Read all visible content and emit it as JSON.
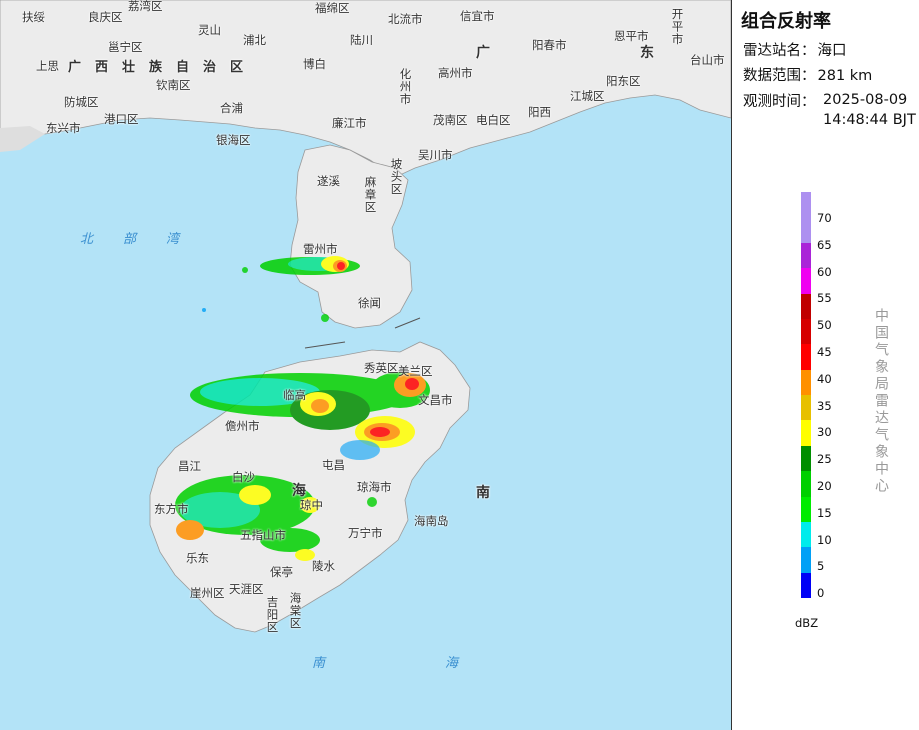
{
  "panel": {
    "title": "组合反射率",
    "station_label": "雷达站名：",
    "station_value": "海口",
    "range_label": "数据范围：",
    "range_value": "281 km",
    "time_label": "观测时间：",
    "time_date": "2025-08-09",
    "time_clock": "14:48:44 BJT"
  },
  "legend": {
    "unit": "dBZ",
    "labels": [
      "70",
      "65",
      "60",
      "55",
      "50",
      "45",
      "40",
      "35",
      "30",
      "25",
      "20",
      "15",
      "10",
      "5",
      "0"
    ],
    "colors": [
      "#ad90f0",
      "#aa24d8",
      "#f000f1",
      "#c00000",
      "#d60000",
      "#ff0000",
      "#ff9000",
      "#e7c000",
      "#ffff00",
      "#008e00",
      "#00d000",
      "#00ec00",
      "#00ecec",
      "#01a0f6",
      "#0000f6"
    ],
    "credit": "中国气象局雷达气象中心"
  },
  "map": {
    "region_label": "广西壮族自治区",
    "sea_north": "北部湾",
    "sea_south": "南海",
    "big_labels": [
      "广",
      "东",
      "海",
      "南"
    ],
    "places": [
      "扶绥",
      "良庆区",
      "灵山",
      "福绵区",
      "北流市",
      "信宜市",
      "邕宁区",
      "浦北",
      "陆川",
      "高州市",
      "阳春市",
      "恩平市",
      "开平市",
      "上思",
      "博白",
      "化州市",
      "台山市",
      "钦南区",
      "阳东区",
      "防城区",
      "合浦",
      "江城区",
      "港口区",
      "东兴市",
      "银海区",
      "廉江市",
      "茂南区",
      "电白区",
      "阳西",
      "吴川市",
      "遂溪",
      "麻章区",
      "坡头区",
      "雷州市",
      "徐闻",
      "秀英区",
      "美兰区",
      "临高",
      "文昌市",
      "儋州市",
      "屯昌",
      "昌江",
      "白沙",
      "琼海市",
      "东方市",
      "琼中",
      "万宁市",
      "海南岛",
      "五指山市",
      "乐东",
      "保亭",
      "陵水",
      "崖州区",
      "天涯区",
      "吉阳区",
      "海棠区",
      "荔湾区"
    ]
  }
}
